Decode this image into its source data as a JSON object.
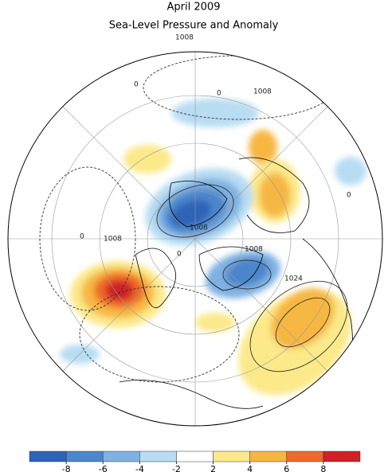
{
  "title": "April 2009",
  "subtitle": "Sea-Level Pressure and Anomaly",
  "contour_labels": [
    "1008",
    "1008",
    "1008",
    "1008",
    "1024",
    "0",
    "0",
    "0",
    "0",
    "0"
  ],
  "colorbar": {
    "ticks": [
      -8,
      -6,
      -4,
      -2,
      2,
      4,
      6,
      8
    ],
    "colors": [
      "#2f63b8",
      "#4c86cc",
      "#7fb1e2",
      "#b8dcf2",
      "#ffffff",
      "#fbe98a",
      "#f6b742",
      "#ee6a2c",
      "#cf2127"
    ]
  }
}
